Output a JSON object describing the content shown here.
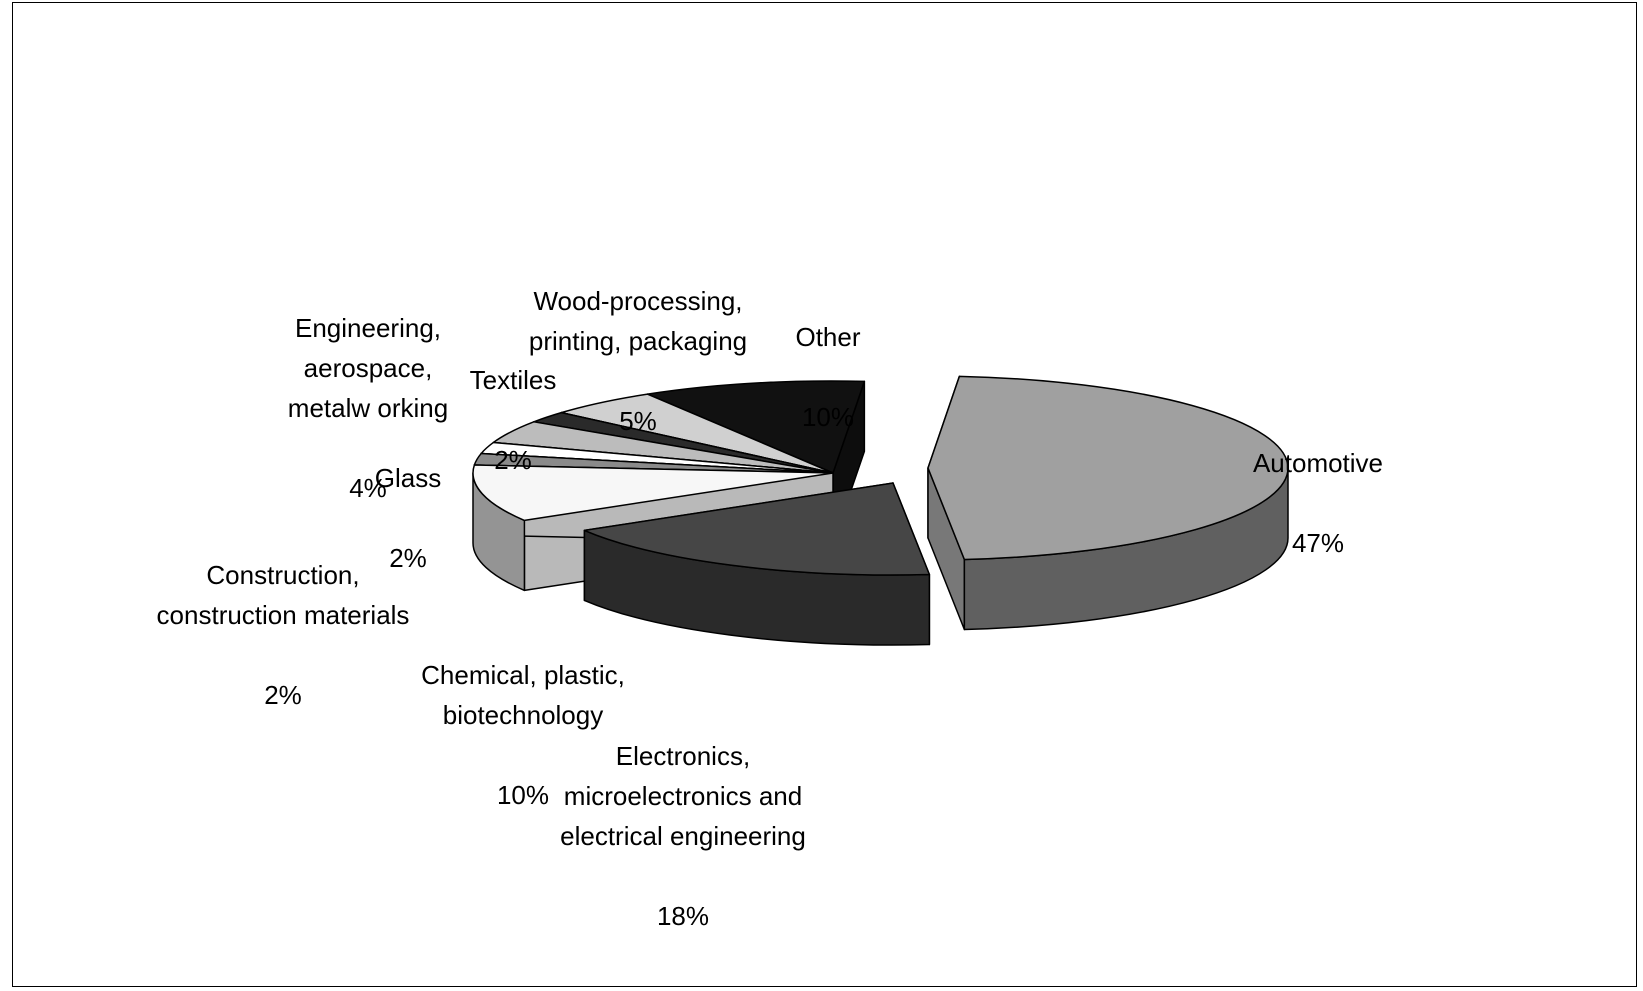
{
  "chart_data": {
    "type": "pie",
    "variant": "3d-exploded",
    "title": "",
    "categories": [
      "Automotive",
      "Electronics,\nmicroelectronics and\nelectrical engineering",
      "Chemical, plastic,\nbiotechnology",
      "Construction,\nconstruction materials",
      "Glass",
      "Engineering,\naerospace,\nmetalw orking",
      "Textiles",
      "Wood-processing,\nprinting, packaging",
      "Other"
    ],
    "values": [
      47,
      18,
      10,
      2,
      2,
      4,
      2,
      5,
      10
    ],
    "value_labels": [
      "47%",
      "18%",
      "10%",
      "2%",
      "2%",
      "4%",
      "2%",
      "5%",
      "10%"
    ],
    "colors": [
      "#a0a0a0",
      "#464646",
      "#f7f7f7",
      "#8a8a8a",
      "#ffffff",
      "#bcbcbc",
      "#2a2a2a",
      "#d0d0d0",
      "#111111"
    ],
    "legend": "none"
  }
}
